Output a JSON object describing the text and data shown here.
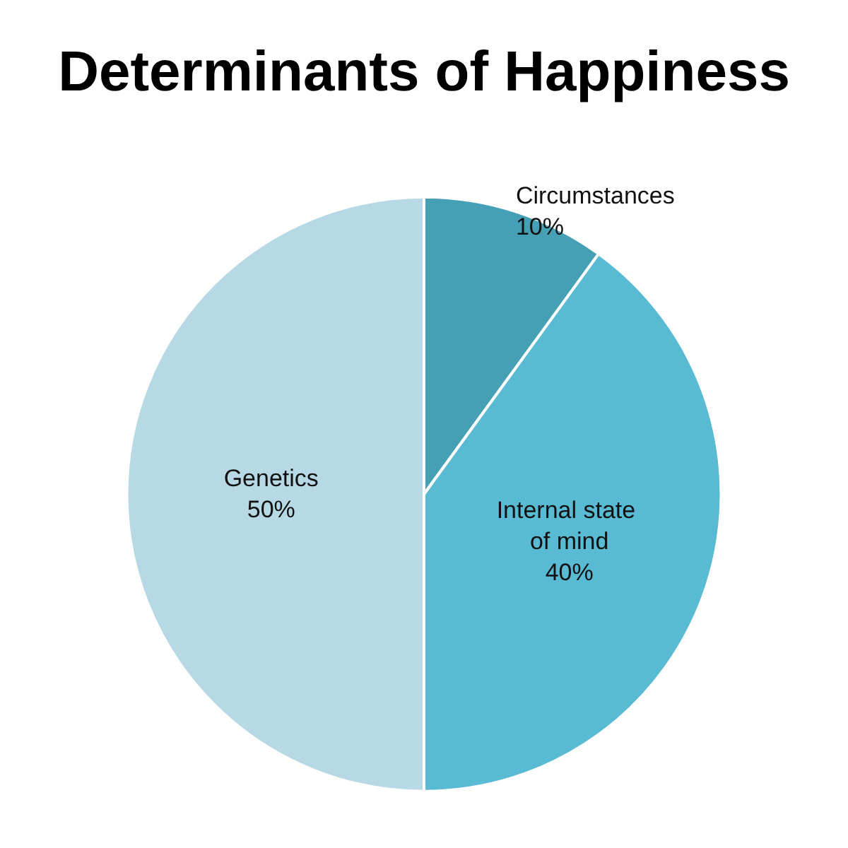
{
  "chart_data": {
    "type": "pie",
    "title": "Determinants of Happiness",
    "categories": [
      "Circumstances",
      "Internal state of mind",
      "Genetics"
    ],
    "values": [
      10,
      40,
      50
    ],
    "value_labels": [
      "10%",
      "40%",
      "50%"
    ],
    "colors": [
      "#45a0b5",
      "#58bad3",
      "#b7d9e6"
    ],
    "legend": false
  }
}
